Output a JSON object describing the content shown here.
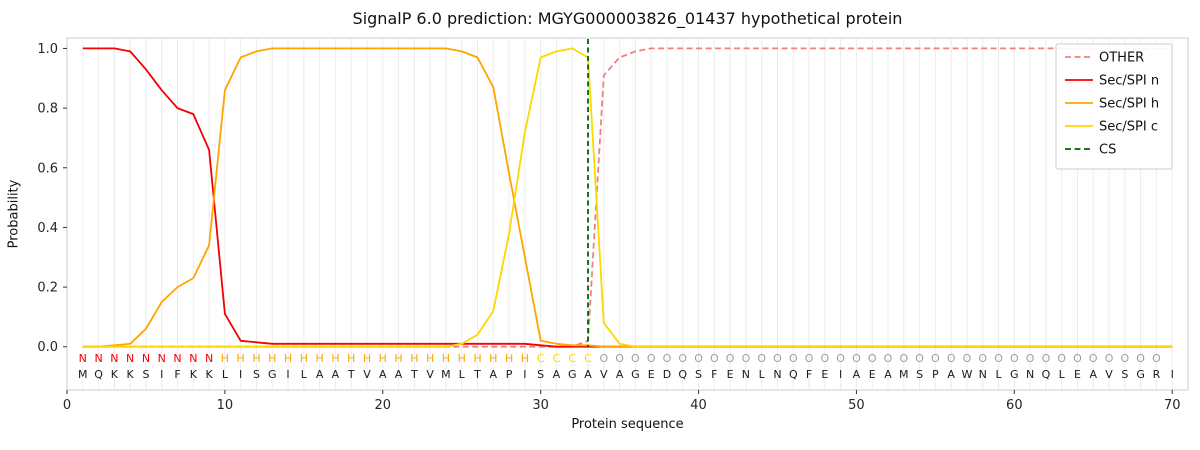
{
  "chart_data": {
    "type": "line",
    "title": "SignalP 6.0 prediction: MGYG000003826_01437 hypothetical protein",
    "xlabel": "Protein sequence",
    "ylabel": "Probability",
    "xlim": [
      0,
      71
    ],
    "ylim": [
      -0.145,
      1.035
    ],
    "xticks": [
      0,
      10,
      20,
      30,
      40,
      50,
      60,
      70
    ],
    "yticks": [
      "0.0",
      "0.2",
      "0.4",
      "0.6",
      "0.8",
      "1.0"
    ],
    "grid": "vertical-per-residue",
    "legend_position": "upper right",
    "legend_labels": [
      "OTHER",
      "Sec/SPI n",
      "Sec/SPI h",
      "Sec/SPI c",
      "CS"
    ],
    "x": [
      1,
      2,
      3,
      4,
      5,
      6,
      7,
      8,
      9,
      10,
      11,
      12,
      13,
      14,
      15,
      16,
      17,
      18,
      19,
      20,
      21,
      22,
      23,
      24,
      25,
      26,
      27,
      28,
      29,
      30,
      31,
      32,
      33,
      34,
      35,
      36,
      37,
      38,
      39,
      40,
      41,
      42,
      43,
      44,
      45,
      46,
      47,
      48,
      49,
      50,
      51,
      52,
      53,
      54,
      55,
      56,
      57,
      58,
      59,
      60,
      61,
      62,
      63,
      64,
      65,
      66,
      67,
      68,
      69,
      70
    ],
    "series": [
      {
        "name": "OTHER",
        "color": "#f08080",
        "dash": true,
        "values": [
          0,
          0,
          0,
          0,
          0,
          0,
          0,
          0,
          0,
          0,
          0,
          0,
          0,
          0,
          0,
          0,
          0,
          0,
          0,
          0,
          0,
          0,
          0,
          0,
          0,
          0,
          0,
          0,
          0,
          0,
          0,
          0,
          0.02,
          0.91,
          0.97,
          0.99,
          1,
          1,
          1,
          1,
          1,
          1,
          1,
          1,
          1,
          1,
          1,
          1,
          1,
          1,
          1,
          1,
          1,
          1,
          1,
          1,
          1,
          1,
          1,
          1,
          1,
          1,
          1,
          1,
          1,
          1,
          1,
          1,
          1,
          1
        ]
      },
      {
        "name": "Sec/SPI n",
        "color": "#f40000",
        "dash": false,
        "values": [
          1,
          1,
          1,
          0.99,
          0.93,
          0.86,
          0.8,
          0.78,
          0.66,
          0.11,
          0.02,
          0.015,
          0.01,
          0.01,
          0.01,
          0.01,
          0.01,
          0.01,
          0.01,
          0.01,
          0.01,
          0.01,
          0.01,
          0.01,
          0.01,
          0.01,
          0.01,
          0.01,
          0.01,
          0.005,
          0,
          0,
          0,
          0,
          0,
          0,
          0,
          0,
          0,
          0,
          0,
          0,
          0,
          0,
          0,
          0,
          0,
          0,
          0,
          0,
          0,
          0,
          0,
          0,
          0,
          0,
          0,
          0,
          0,
          0,
          0,
          0,
          0,
          0,
          0,
          0,
          0,
          0,
          0,
          0
        ]
      },
      {
        "name": "Sec/SPI h",
        "color": "#ffa500",
        "dash": false,
        "values": [
          0,
          0,
          0.005,
          0.01,
          0.06,
          0.15,
          0.2,
          0.23,
          0.34,
          0.86,
          0.97,
          0.99,
          1,
          1,
          1,
          1,
          1,
          1,
          1,
          1,
          1,
          1,
          1,
          1,
          0.99,
          0.97,
          0.87,
          0.58,
          0.3,
          0.02,
          0.01,
          0.005,
          0.005,
          0,
          0,
          0,
          0,
          0,
          0,
          0,
          0,
          0,
          0,
          0,
          0,
          0,
          0,
          0,
          0,
          0,
          0,
          0,
          0,
          0,
          0,
          0,
          0,
          0,
          0,
          0,
          0,
          0,
          0,
          0,
          0,
          0,
          0,
          0,
          0,
          0
        ]
      },
      {
        "name": "Sec/SPI c",
        "color": "#ffd700",
        "dash": false,
        "values": [
          0,
          0,
          0,
          0,
          0,
          0,
          0,
          0,
          0,
          0,
          0,
          0,
          0,
          0,
          0,
          0,
          0,
          0,
          0,
          0,
          0,
          0,
          0,
          0,
          0.01,
          0.04,
          0.12,
          0.38,
          0.72,
          0.97,
          0.99,
          1,
          0.97,
          0.08,
          0.01,
          0,
          0,
          0,
          0,
          0,
          0,
          0,
          0,
          0,
          0,
          0,
          0,
          0,
          0,
          0,
          0,
          0,
          0,
          0,
          0,
          0,
          0,
          0,
          0,
          0,
          0,
          0,
          0,
          0,
          0,
          0,
          0,
          0,
          0,
          0
        ]
      }
    ],
    "cs_line": {
      "name": "CS",
      "x": 33,
      "color": "#006400",
      "dash": true
    },
    "sequence": "MQKKSIFKKLISGILAATVAATVMLTAPISAGAVAGEDQSFENLNQFEIAEAMSPAWNLGNQLEAVSGRI",
    "region_labels": "NNNNNNNNNHHHHHHHHHHHHHHHHHHHHCCCCOOOOOOOOOOOOOOOOOOOOOOOOOOOOOOOOOOOO",
    "label_colors": {
      "N": "#f40000",
      "H": "#ffa500",
      "C": "#ffd700",
      "O": "#9e9e9e"
    },
    "style": {
      "background": "#ffffff",
      "grid_color": "#ececec",
      "frame_color": "#cccccc",
      "tick_color": "#333333",
      "text_color": "#262626",
      "sequence_color": "#1a1a1a"
    }
  }
}
